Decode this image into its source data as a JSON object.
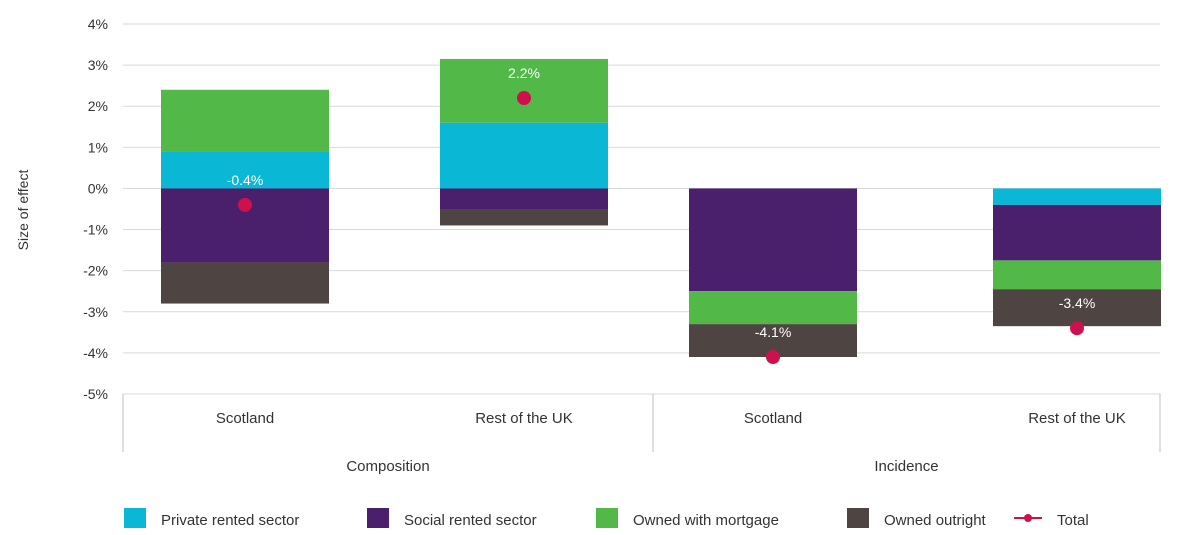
{
  "chart_data": {
    "type": "bar",
    "stacked": true,
    "ylabel": "Size of effect",
    "xlabel": "",
    "ylim": [
      -5,
      4
    ],
    "y_ticks": [
      {
        "value": 4,
        "label": "4%"
      },
      {
        "value": 3,
        "label": "3%"
      },
      {
        "value": 2,
        "label": "2%"
      },
      {
        "value": 1,
        "label": "1%"
      },
      {
        "value": 0,
        "label": "0%"
      },
      {
        "value": -1,
        "label": "-1%"
      },
      {
        "value": -2,
        "label": "-2%"
      },
      {
        "value": -3,
        "label": "-3%"
      },
      {
        "value": -4,
        "label": "-4%"
      },
      {
        "value": -5,
        "label": "-5%"
      }
    ],
    "grid": true,
    "legend_position": "bottom",
    "groups": [
      {
        "label": "Composition",
        "categories": [
          "Scotland",
          "Rest of the UK"
        ]
      },
      {
        "label": "Incidence",
        "categories": [
          "Scotland",
          "Rest of the UK"
        ]
      }
    ],
    "categories": [
      "Scotland",
      "Rest of the UK",
      "Scotland",
      "Rest of the UK"
    ],
    "series": [
      {
        "name": "Private rented sector",
        "color": "#0ab8d6",
        "values": [
          0.9,
          1.6,
          0,
          -0.4
        ]
      },
      {
        "name": "Social rented sector",
        "color": "#4a1f6b",
        "values": [
          -1.8,
          -0.5,
          -2.5,
          -1.35
        ]
      },
      {
        "name": "Owned with mortgage",
        "color": "#52b848",
        "values": [
          1.5,
          1.55,
          -0.8,
          -0.7
        ]
      },
      {
        "name": "Owned outright",
        "color": "#4e4542",
        "values": [
          -1.0,
          -0.4,
          -0.8,
          -0.9
        ]
      }
    ],
    "total": {
      "name": "Total",
      "color": "#d0104c",
      "values": [
        -0.4,
        2.2,
        -4.1,
        -3.4
      ],
      "labels": [
        "-0.4%",
        "2.2%",
        "-4.1%",
        "-3.4%"
      ]
    }
  }
}
